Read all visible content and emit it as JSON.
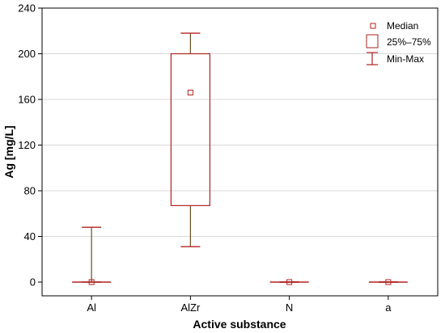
{
  "chart_data": {
    "type": "boxplot",
    "xlabel": "Active substance",
    "ylabel": "Ag [mg/L]",
    "ylim": [
      0,
      240
    ],
    "yticks": [
      0,
      40,
      80,
      120,
      160,
      200,
      240
    ],
    "grid": true,
    "legend_position": "top-right",
    "categories": [
      "Al",
      "AlZr",
      "N",
      "a"
    ],
    "boxes": [
      {
        "category": "Al",
        "min": 0,
        "q1": 0,
        "median": 0,
        "q3": 0,
        "max": 48
      },
      {
        "category": "AlZr",
        "min": 31,
        "q1": 67,
        "median": 166,
        "q3": 200,
        "max": 218
      },
      {
        "category": "N",
        "min": 0,
        "q1": 0,
        "median": 0,
        "q3": 0,
        "max": 0
      },
      {
        "category": "a",
        "min": 0,
        "q1": 0,
        "median": 0,
        "q3": 0,
        "max": 0
      }
    ],
    "legend": {
      "median": "Median",
      "box": "25%–75%",
      "whisker": "Min-Max"
    },
    "colors": {
      "box": "#b22222",
      "whisker": "#6b4c1e",
      "grid": "#d9d9d9",
      "axis": "#000000"
    }
  }
}
